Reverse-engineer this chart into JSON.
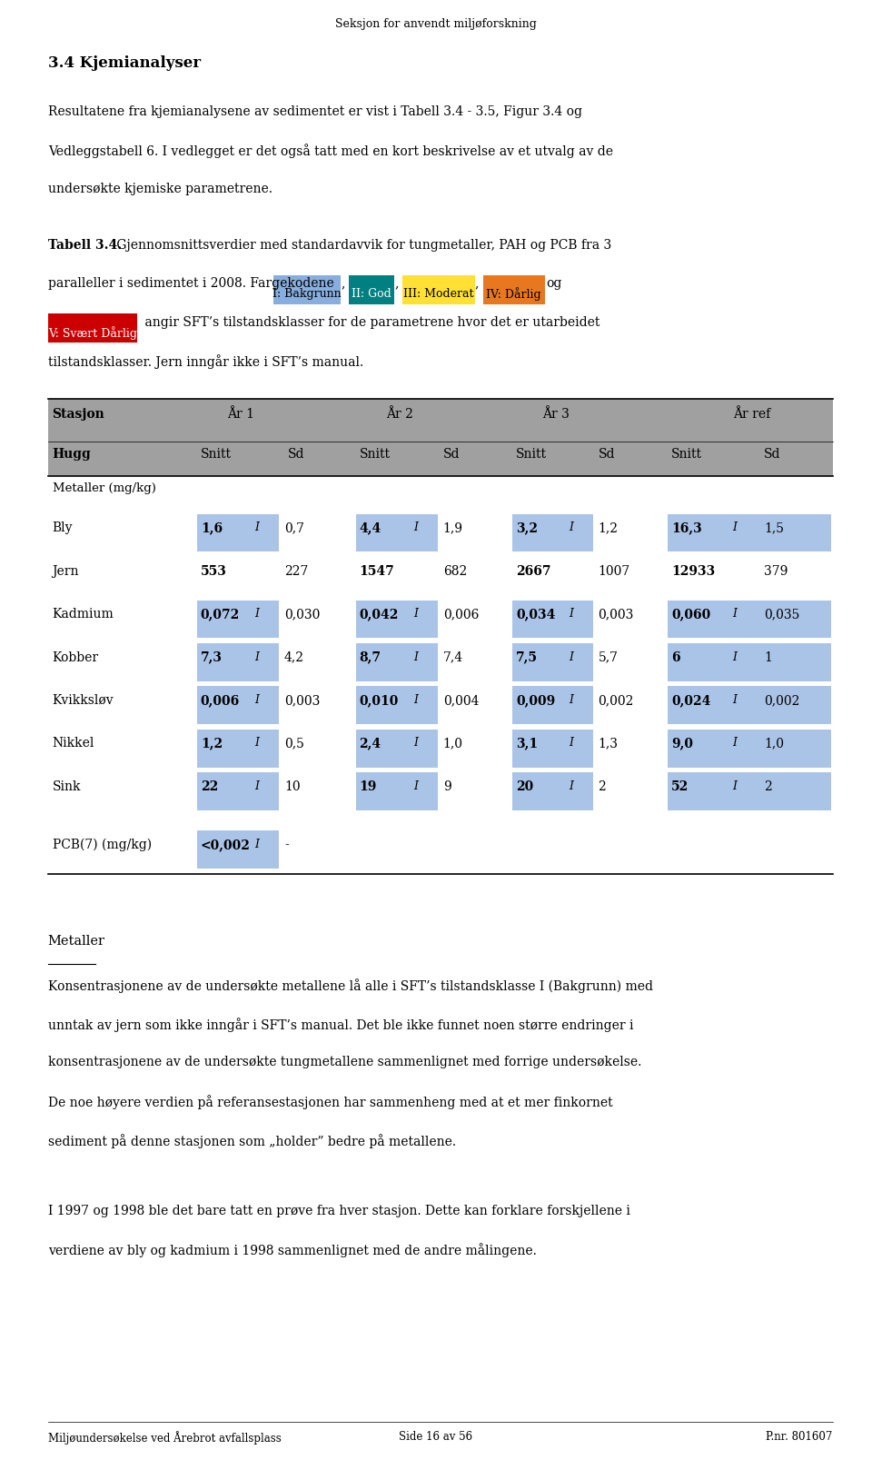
{
  "page_width": 9.6,
  "page_height": 16.07,
  "background_color": "#ffffff",
  "header_text": "Seksjon for anvendt miljøforskning",
  "section_title": "3.4 Kjemianalyser",
  "para1_lines": [
    "Resultatene fra kjemianalysene av sedimentet er vist i Tabell 3.4 - 3.5, Figur 3.4 og",
    "Vedleggstabell 6. I vedlegget er det også tatt med en kort beskrivelse av et utvalg av de",
    "undersøkte kjemiske parametrene."
  ],
  "table_caption_bold": "Tabell 3.4.",
  "table_caption_line1_rest": " Gjennomsnittsverdier med standardavvik for tungmetaller, PAH og PCB fra 3",
  "table_caption_line2_pre": "paralleller i sedimentet i 2008. Fargekodene ",
  "color_labels": [
    {
      "text": "I: Bakgrunn",
      "bg": "#87AEDE",
      "fg": "#000000"
    },
    {
      "text": "II: God",
      "bg": "#008080",
      "fg": "#ffffff"
    },
    {
      "text": "III: Moderat",
      "bg": "#FFE033",
      "fg": "#000000"
    },
    {
      "text": "IV: Dårlig",
      "bg": "#E87820",
      "fg": "#000000"
    }
  ],
  "color_label_red": {
    "text": "V: Svært Dårlig",
    "bg": "#cc0000",
    "fg": "#ffffff"
  },
  "caption_line3_after_red": " angir SFT’s tilstandsklasser for de parametrene hvor det er utarbeidet",
  "caption_line4": "tilstandsklasser. Jern inngår ikke i SFT’s manual.",
  "table_header_bg": "#a0a0a0",
  "cell_blue": "#aac4e8",
  "section_label": "Metaller (mg/kg)",
  "rows": [
    {
      "name": "Bly",
      "yr1_s": "1,6",
      "yr1_i": true,
      "yr1_sd": "0,7",
      "yr2_s": "4,4",
      "yr2_i": true,
      "yr2_sd": "1,9",
      "yr3_s": "3,2",
      "yr3_i": true,
      "yr3_sd": "1,2",
      "yrr_s": "16,3",
      "yrr_i": true,
      "yrr_sd": "1,5"
    },
    {
      "name": "Jern",
      "yr1_s": "553",
      "yr1_i": false,
      "yr1_sd": "227",
      "yr2_s": "1547",
      "yr2_i": false,
      "yr2_sd": "682",
      "yr3_s": "2667",
      "yr3_i": false,
      "yr3_sd": "1007",
      "yrr_s": "12933",
      "yrr_i": false,
      "yrr_sd": "379"
    },
    {
      "name": "Kadmium",
      "yr1_s": "0,072",
      "yr1_i": true,
      "yr1_sd": "0,030",
      "yr2_s": "0,042",
      "yr2_i": true,
      "yr2_sd": "0,006",
      "yr3_s": "0,034",
      "yr3_i": true,
      "yr3_sd": "0,003",
      "yrr_s": "0,060",
      "yrr_i": true,
      "yrr_sd": "0,035"
    },
    {
      "name": "Kobber",
      "yr1_s": "7,3",
      "yr1_i": true,
      "yr1_sd": "4,2",
      "yr2_s": "8,7",
      "yr2_i": true,
      "yr2_sd": "7,4",
      "yr3_s": "7,5",
      "yr3_i": true,
      "yr3_sd": "5,7",
      "yrr_s": "6",
      "yrr_i": true,
      "yrr_sd": "1"
    },
    {
      "name": "Kvikksløv",
      "yr1_s": "0,006",
      "yr1_i": true,
      "yr1_sd": "0,003",
      "yr2_s": "0,010",
      "yr2_i": true,
      "yr2_sd": "0,004",
      "yr3_s": "0,009",
      "yr3_i": true,
      "yr3_sd": "0,002",
      "yrr_s": "0,024",
      "yrr_i": true,
      "yrr_sd": "0,002"
    },
    {
      "name": "Nikkel",
      "yr1_s": "1,2",
      "yr1_i": true,
      "yr1_sd": "0,5",
      "yr2_s": "2,4",
      "yr2_i": true,
      "yr2_sd": "1,0",
      "yr3_s": "3,1",
      "yr3_i": true,
      "yr3_sd": "1,3",
      "yrr_s": "9,0",
      "yrr_i": true,
      "yrr_sd": "1,0"
    },
    {
      "name": "Sink",
      "yr1_s": "22",
      "yr1_i": true,
      "yr1_sd": "10",
      "yr2_s": "19",
      "yr2_i": true,
      "yr2_sd": "9",
      "yr3_s": "20",
      "yr3_i": true,
      "yr3_sd": "2",
      "yrr_s": "52",
      "yrr_i": true,
      "yrr_sd": "2"
    }
  ],
  "pcb_row": {
    "name": "PCB(7) (mg/kg)",
    "yr1_s": "<0,002",
    "yr1_i": true,
    "yr1_sd": "-"
  },
  "section2_title": "Metaller",
  "para2_lines": [
    "Konsentrasjonene av de undersøkte metallene lå alle i SFT’s tilstandsklasse I (Bakgrunn) med",
    "unntak av jern som ikke inngår i SFT’s manual. Det ble ikke funnet noen større endringer i",
    "konsentrasjonene av de undersøkte tungmetallene sammenlignet med forrige undersøkelse.",
    "De noe høyere verdien på referansestasjonen har sammenheng med at et mer finkornet",
    "sediment på denne stasjonen som „holder” bedre på metallene."
  ],
  "para3_lines": [
    "I 1997 og 1998 ble det bare tatt en prøve fra hver stasjon. Dette kan forklare forskjellene i",
    "verdiene av bly og kadmium i 1998 sammenlignet med de andre målingene."
  ],
  "footer_left": "Miljøundersøkelse ved Årebrot avfallsplass",
  "footer_center": "Side 16 av 56",
  "footer_right": "P.nr. 801607"
}
